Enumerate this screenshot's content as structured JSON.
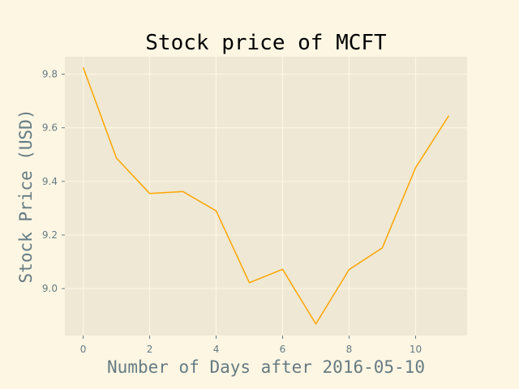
{
  "chart_data": {
    "type": "line",
    "title": "Stock price of MCFT",
    "xlabel": "Number of Days after 2016-05-10",
    "ylabel": "Stock Price (USD)",
    "x": [
      0,
      1,
      2,
      3,
      4,
      5,
      6,
      7,
      8,
      9,
      10,
      11
    ],
    "series": [
      {
        "values": [
          9.825,
          9.487,
          9.355,
          9.362,
          9.29,
          9.022,
          9.072,
          8.868,
          9.071,
          9.152,
          9.451,
          9.645
        ]
      }
    ],
    "xlim": [
      -0.55,
      11.55
    ],
    "ylim": [
      8.825,
      9.865
    ],
    "x_ticks": [
      0,
      2,
      4,
      6,
      8,
      10
    ],
    "y_ticks": [
      9.0,
      9.2,
      9.4,
      9.6,
      9.8
    ],
    "grid": true,
    "colors": {
      "line": "#ffa500",
      "axes_background": "#eee8d5",
      "grid": "#fdf6e3",
      "figure_background": "#fdf6e3"
    }
  }
}
